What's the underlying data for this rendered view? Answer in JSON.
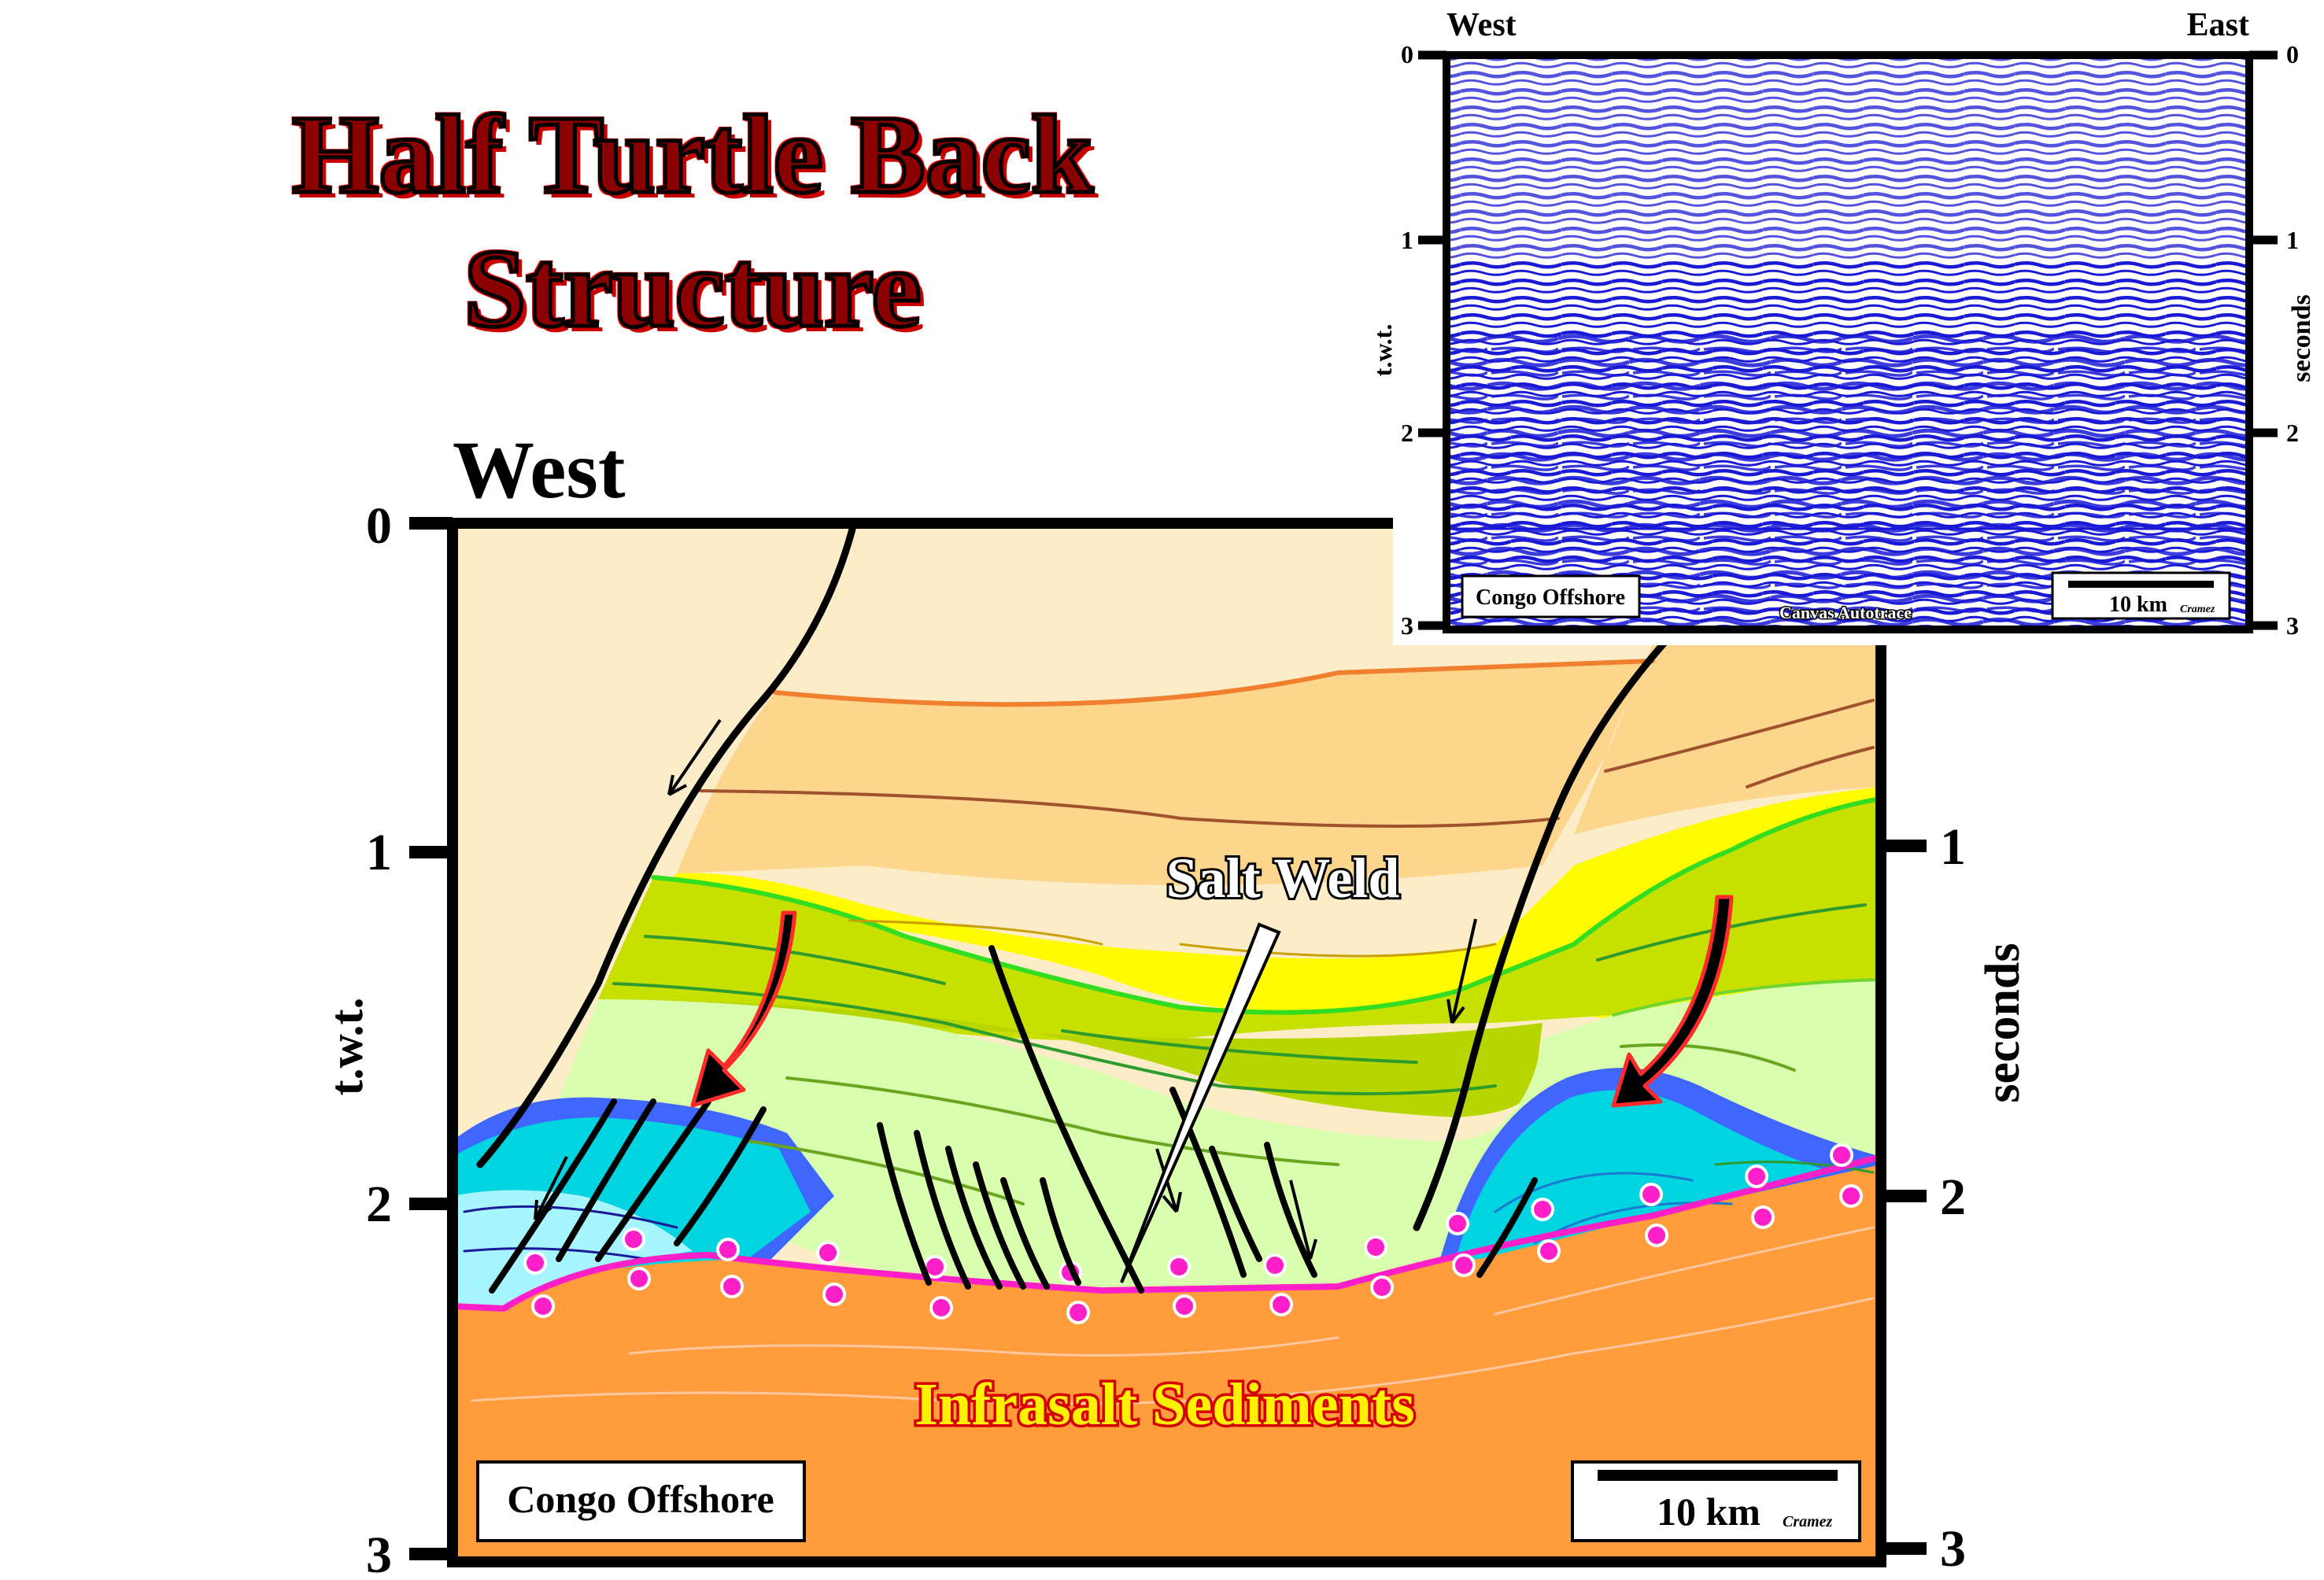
{
  "title": {
    "line1": "Half Turtle Back",
    "line2": "Structure"
  },
  "main_section": {
    "direction_left": "West",
    "left_axis_label": "t.w.t.",
    "right_axis_label": "seconds",
    "ticks": [
      "0",
      "1",
      "2",
      "3"
    ],
    "annotations": {
      "salt_weld": "Salt Weld",
      "infrasalt": "Infrasalt Sediments"
    },
    "location_box": "Congo Offshore",
    "scale_bar": {
      "label": "10 km",
      "credit": "Cramez"
    }
  },
  "inset_seismic": {
    "direction_left": "West",
    "direction_right": "East",
    "left_axis_label": "t.w.t.",
    "right_axis_label": "seconds",
    "ticks": [
      "0",
      "1",
      "2",
      "3"
    ],
    "location_box": "Congo Offshore",
    "processing_label": "Canvas Autotrace",
    "scale_bar": {
      "label": "10 km",
      "credit": "Cramez"
    }
  },
  "colors": {
    "upper_light": "#fcedc8",
    "upper_orange": "#fcd68c",
    "yellow": "#fffb00",
    "olive_green": "#c8e000",
    "pale_green": "#d9ffae",
    "blue_layer": "#3f66ff",
    "cyan": "#00d4e0",
    "light_cyan": "#a7f6ff",
    "infrasalt_orange": "#ff9d3c",
    "salt_weld_magenta": "#ff1fc8",
    "seismic_blue": "#1a1ad6"
  }
}
